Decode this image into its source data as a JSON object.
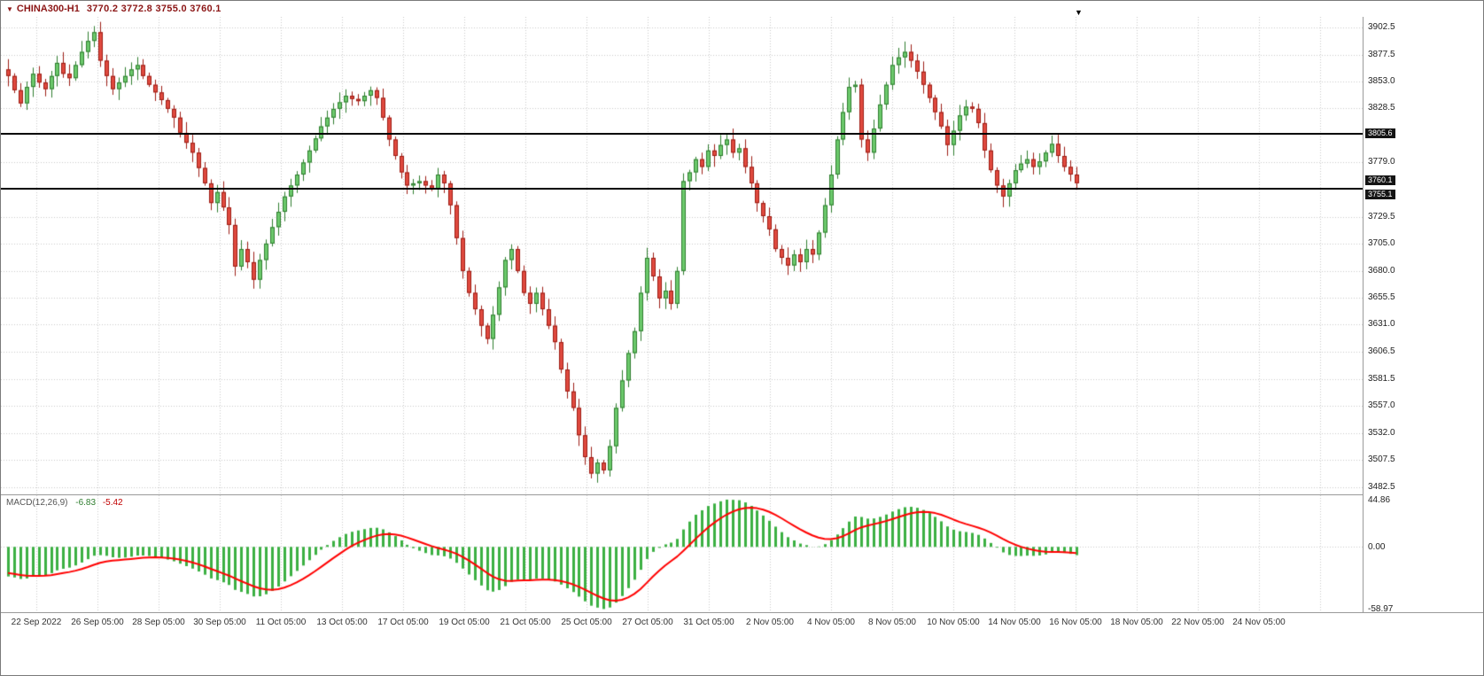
{
  "header": {
    "symbol_title": "CHINA300-H1",
    "quote": "3770.2 3772.8 3755.0 3760.1"
  },
  "colors": {
    "up_fill": "#6cc96c",
    "up_stroke": "#2e7d2e",
    "down_fill": "#e04a3f",
    "down_stroke": "#9c1c14",
    "grid": "#c9c9c9",
    "hline": "#000000",
    "title_text": "#8b1515"
  },
  "chart_data": {
    "type": "candlestick",
    "title": "CHINA300-H1",
    "symbol": "CHINA300",
    "timeframe": "H1",
    "last_quote": {
      "open": 3770.2,
      "high": 3772.8,
      "low": 3755.0,
      "close": 3760.1
    },
    "price_axis": {
      "range_top": 3912,
      "range_bottom": 3476,
      "ticks": [
        3902.5,
        3877.5,
        3853.0,
        3828.5,
        3779.0,
        3729.5,
        3705.0,
        3680.0,
        3655.5,
        3631.0,
        3606.5,
        3581.5,
        3557.0,
        3532.0,
        3507.5,
        3482.5
      ],
      "tags": [
        {
          "label": "3805.6",
          "price": 3805.6
        },
        {
          "label": "3760.1",
          "price": 3760.1
        },
        {
          "label": "3755.1",
          "price": 3755.1
        }
      ]
    },
    "hlines": [
      3805.6,
      3755.1
    ],
    "time_labels": [
      "22 Sep 2022",
      "26 Sep 05:00",
      "28 Sep 05:00",
      "30 Sep 05:00",
      "11 Oct 05:00",
      "13 Oct 05:00",
      "17 Oct 05:00",
      "19 Oct 05:00",
      "21 Oct 05:00",
      "25 Oct 05:00",
      "27 Oct 05:00",
      "31 Oct 05:00",
      "2 Nov 05:00",
      "4 Nov 05:00",
      "8 Nov 05:00",
      "10 Nov 05:00",
      "14 Nov 05:00",
      "16 Nov 05:00",
      "18 Nov 05:00",
      "22 Nov 05:00",
      "24 Nov 05:00"
    ],
    "closes": [
      3858,
      3845,
      3833,
      3848,
      3860,
      3852,
      3846,
      3858,
      3870,
      3860,
      3856,
      3868,
      3880,
      3890,
      3898,
      3872,
      3858,
      3846,
      3852,
      3858,
      3864,
      3868,
      3858,
      3850,
      3843,
      3836,
      3828,
      3820,
      3806,
      3797,
      3788,
      3774,
      3760,
      3742,
      3752,
      3738,
      3722,
      3684,
      3700,
      3688,
      3672,
      3690,
      3705,
      3720,
      3734,
      3748,
      3758,
      3768,
      3779,
      3790,
      3801,
      3812,
      3820,
      3828,
      3834,
      3840,
      3837,
      3835,
      3840,
      3845,
      3838,
      3820,
      3800,
      3785,
      3770,
      3758,
      3760,
      3762,
      3758,
      3755,
      3768,
      3760,
      3740,
      3710,
      3680,
      3660,
      3645,
      3630,
      3618,
      3640,
      3665,
      3690,
      3700,
      3680,
      3660,
      3650,
      3660,
      3645,
      3630,
      3615,
      3590,
      3570,
      3555,
      3530,
      3510,
      3495,
      3505,
      3498,
      3520,
      3555,
      3580,
      3605,
      3625,
      3660,
      3692,
      3675,
      3655,
      3662,
      3650,
      3680,
      3762,
      3770,
      3782,
      3775,
      3790,
      3785,
      3795,
      3800,
      3788,
      3792,
      3775,
      3760,
      3742,
      3730,
      3718,
      3700,
      3692,
      3685,
      3695,
      3688,
      3700,
      3695,
      3715,
      3740,
      3768,
      3800,
      3825,
      3848,
      3850,
      3800,
      3788,
      3810,
      3832,
      3850,
      3868,
      3875,
      3880,
      3872,
      3862,
      3850,
      3838,
      3825,
      3812,
      3795,
      3808,
      3822,
      3830,
      3828,
      3815,
      3790,
      3772,
      3758,
      3748,
      3760,
      3772,
      3778,
      3782,
      3775,
      3780,
      3788,
      3796,
      3785,
      3775,
      3768,
      3760.1
    ],
    "macd": {
      "name": "MACD(12,26,9)",
      "macd_value": "-6.83",
      "signal_value": "-5.42",
      "params": [
        12,
        26,
        9
      ],
      "axis_labels": [
        "44.86",
        "0.00",
        "-58.97"
      ],
      "range_top": 49,
      "range_bottom": -62,
      "histogram_color": "#3cb043",
      "signal_color": "#ff0000"
    }
  }
}
